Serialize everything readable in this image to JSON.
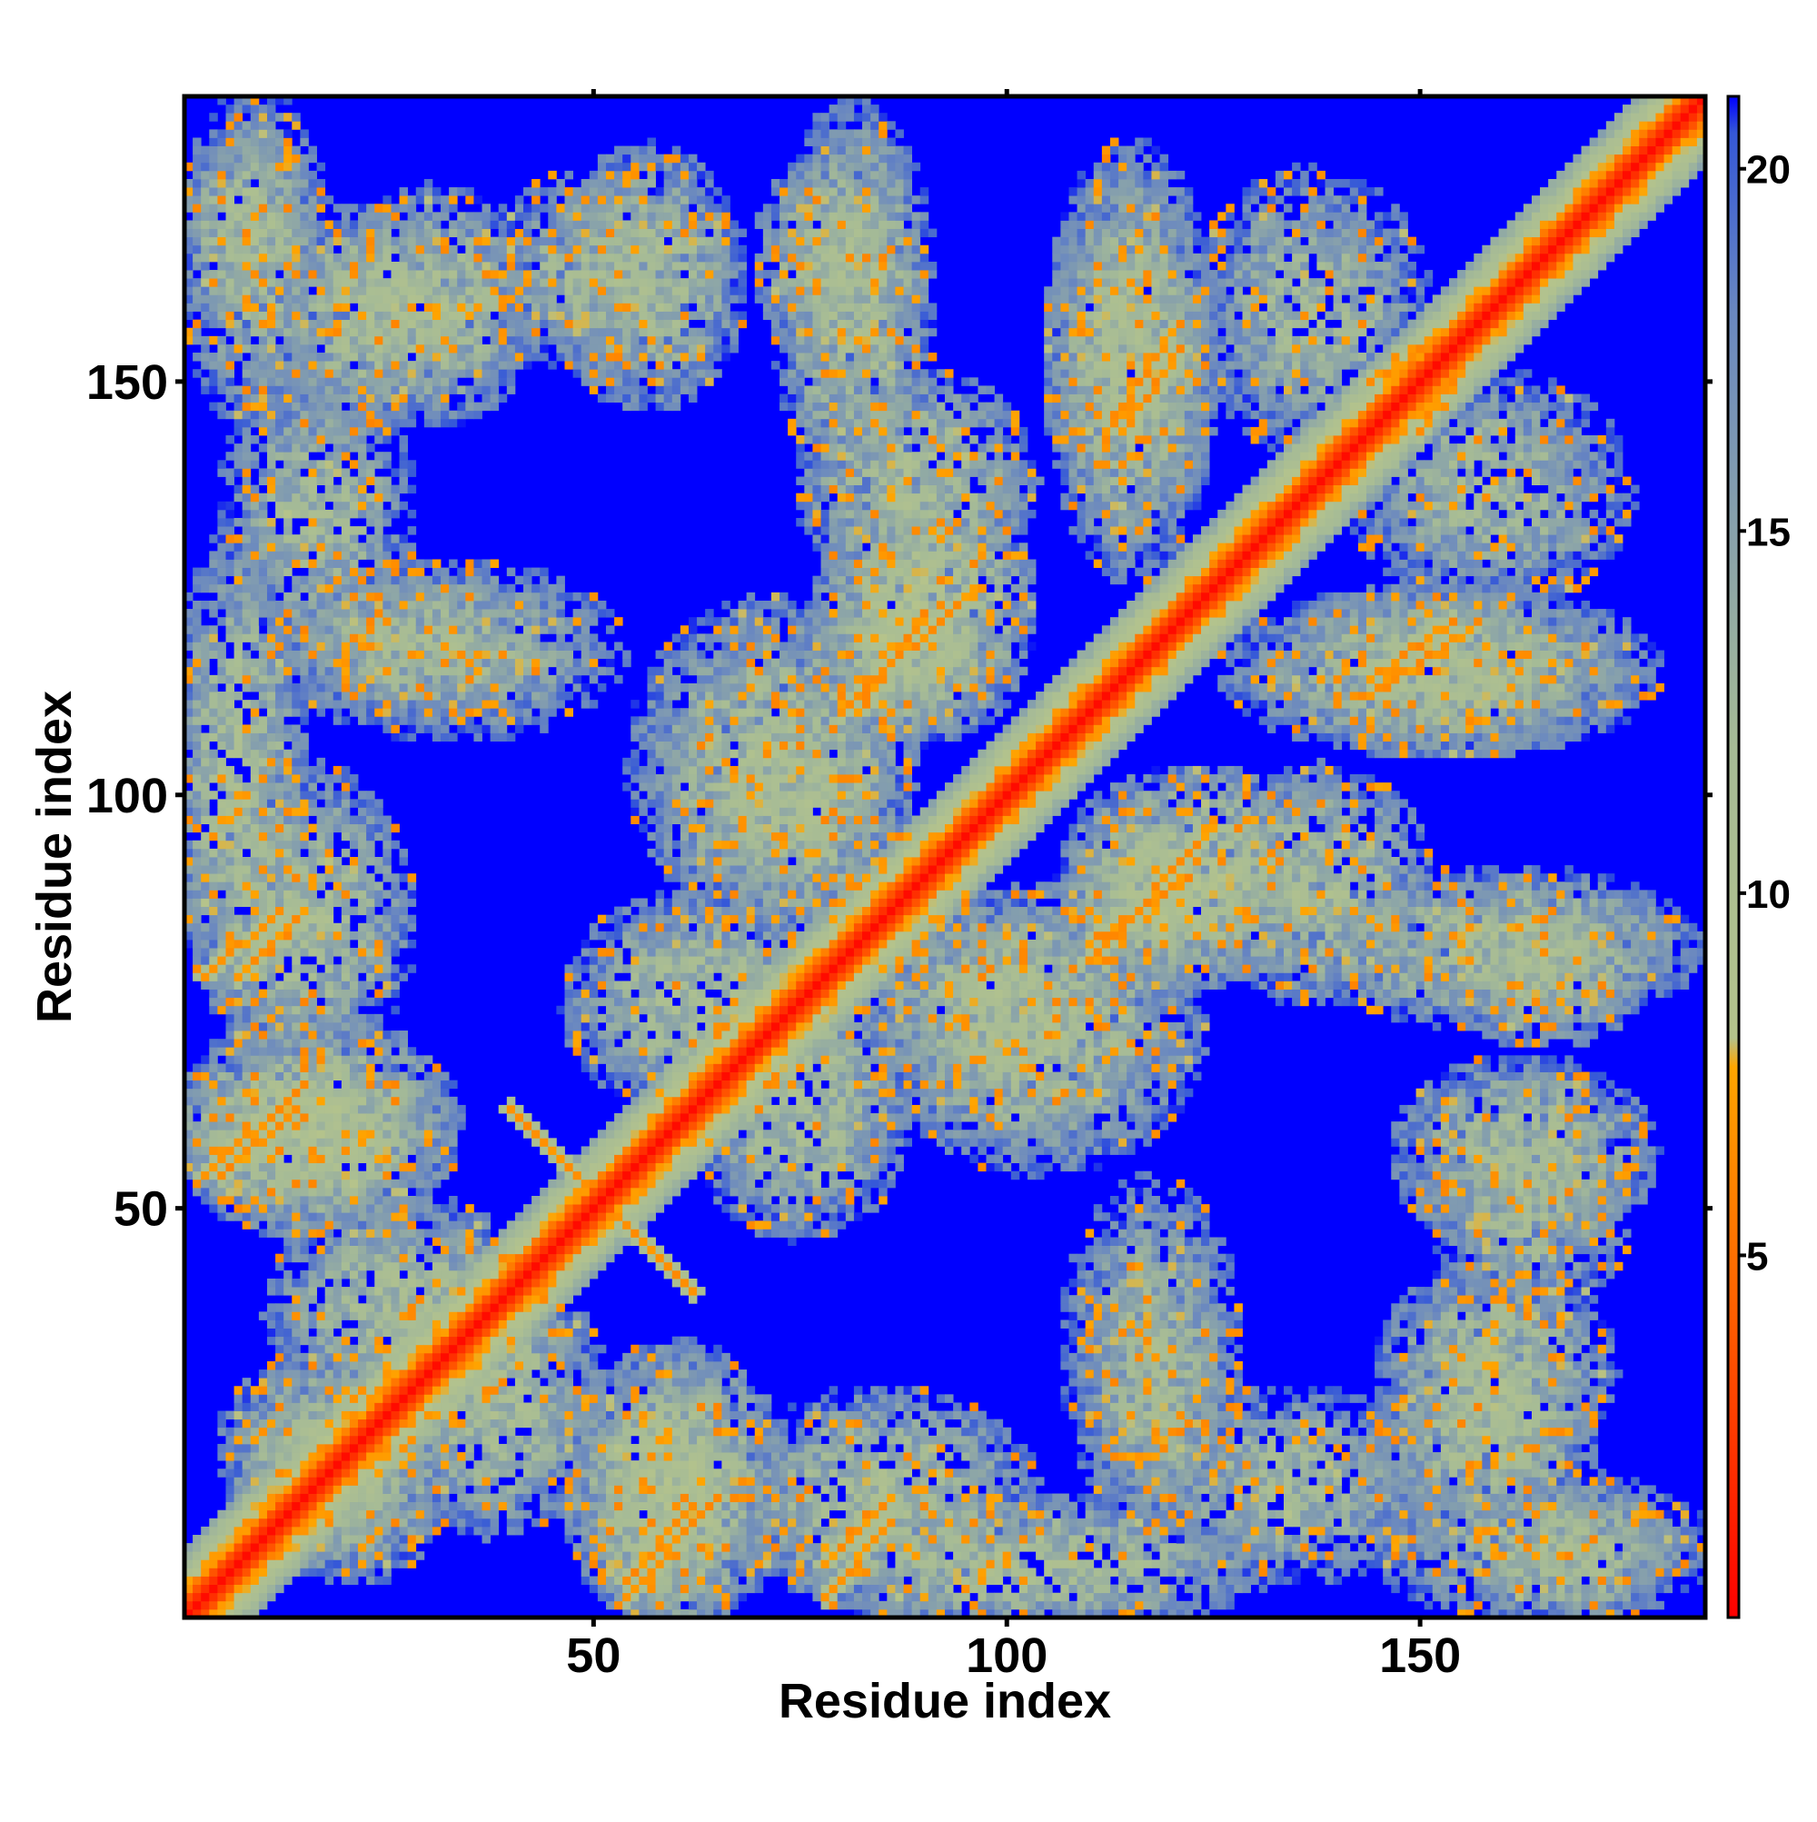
{
  "chart_data": {
    "type": "heatmap",
    "title": "",
    "xlabel": "Residue index",
    "ylabel": "Residue index",
    "n_residues": 184,
    "xlim": [
      1,
      184
    ],
    "ylim": [
      1,
      184
    ],
    "x_ticks": [
      50,
      100,
      150
    ],
    "x_tick_labels": [
      "50",
      "100",
      "150"
    ],
    "y_ticks": [
      50,
      100,
      150
    ],
    "y_tick_labels": [
      "50",
      "100",
      "150"
    ],
    "colorbar": {
      "label": "",
      "range": [
        0,
        21
      ],
      "ticks": [
        5,
        10,
        15,
        20
      ],
      "tick_labels": [
        "5",
        "10",
        "15",
        "20"
      ],
      "stops": [
        {
          "value": 0,
          "color": "#ff0000"
        },
        {
          "value": 4,
          "color": "#ff5a00"
        },
        {
          "value": 7.6,
          "color": "#ffa500"
        },
        {
          "value": 8.0,
          "color": "#b4c38c"
        },
        {
          "value": 12,
          "color": "#a6bb96"
        },
        {
          "value": 18,
          "color": "#6a88c0"
        },
        {
          "value": 20.5,
          "color": "#3558d8"
        },
        {
          "value": 21,
          "color": "#0000ff"
        }
      ]
    },
    "background_value": 21,
    "diagonal": {
      "min_distance": 0.5,
      "band_width_residues": 8
    },
    "contact_regions": [
      {
        "x": [
          3,
          13
        ],
        "y": [
          160,
          178
        ],
        "level": 12
      },
      {
        "x": [
          14,
          32
        ],
        "y": [
          148,
          168
        ],
        "level": 12
      },
      {
        "x": [
          40,
          60
        ],
        "y": [
          155,
          172
        ],
        "level": 13
      },
      {
        "x": [
          73,
          85
        ],
        "y": [
          155,
          175
        ],
        "level": 12
      },
      {
        "x": [
          108,
          122
        ],
        "y": [
          135,
          172
        ],
        "level": 12
      },
      {
        "x": [
          126,
          148
        ],
        "y": [
          145,
          172
        ],
        "level": 13
      },
      {
        "x": [
          78,
          100
        ],
        "y": [
          128,
          148
        ],
        "level": 12
      },
      {
        "x": [
          80,
          95
        ],
        "y": [
          110,
          125
        ],
        "level": 11
      },
      {
        "x": [
          2,
          12
        ],
        "y": [
          78,
          128
        ],
        "level": 12
      },
      {
        "x": [
          14,
          40
        ],
        "y": [
          112,
          125
        ],
        "level": 13
      },
      {
        "x": [
          58,
          85
        ],
        "y": [
          88,
          120
        ],
        "level": 12
      },
      {
        "x": [
          110,
          135
        ],
        "y": [
          80,
          100
        ],
        "level": 11
      },
      {
        "x": [
          130,
          175
        ],
        "y": [
          108,
          122
        ],
        "level": 12
      },
      {
        "x": [
          140,
          180
        ],
        "y": [
          75,
          88
        ],
        "level": 12
      },
      {
        "x": [
          86,
          112
        ],
        "y": [
          65,
          85
        ],
        "level": 12
      },
      {
        "x": [
          2,
          30
        ],
        "y": [
          50,
          70
        ],
        "level": 11
      },
      {
        "x": [
          50,
          75
        ],
        "y": [
          65,
          85
        ],
        "level": 12
      },
      {
        "x": [
          14,
          40
        ],
        "y": [
          28,
          48
        ],
        "level": 12
      },
      {
        "x": [
          8,
          30
        ],
        "y": [
          10,
          30
        ],
        "level": 12
      },
      {
        "x": [
          52,
          66
        ],
        "y": [
          3,
          28
        ],
        "level": 11
      },
      {
        "x": [
          70,
          100
        ],
        "y": [
          5,
          25
        ],
        "level": 12
      },
      {
        "x": [
          110,
          125
        ],
        "y": [
          15,
          50
        ],
        "level": 13
      },
      {
        "x": [
          148,
          170
        ],
        "y": [
          20,
          40
        ],
        "level": 12
      },
      {
        "x": [
          150,
          175
        ],
        "y": [
          48,
          65
        ],
        "level": 12
      },
      {
        "x": [
          148,
          182
        ],
        "y": [
          3,
          15
        ],
        "level": 13
      },
      {
        "x": [
          120,
          148
        ],
        "y": [
          8,
          25
        ],
        "level": 13
      }
    ],
    "close_contacts": [
      {
        "from": [
          40,
          62
        ],
        "to": [
          62,
          40
        ],
        "value": 6
      },
      {
        "from": [
          110,
          80
        ],
        "to": [
          125,
          96
        ],
        "value": 6
      },
      {
        "from": [
          144,
          112
        ],
        "to": [
          156,
          120
        ],
        "value": 6
      },
      {
        "from": [
          82,
          110
        ],
        "to": [
          90,
          122
        ],
        "value": 6
      },
      {
        "from": [
          3,
          54
        ],
        "to": [
          14,
          64
        ],
        "value": 6
      },
      {
        "from": [
          54,
          5
        ],
        "to": [
          62,
          14
        ],
        "value": 6
      },
      {
        "from": [
          78,
          7
        ],
        "to": [
          86,
          15
        ],
        "value": 6
      },
      {
        "from": [
          3,
          78
        ],
        "to": [
          12,
          86
        ],
        "value": 6
      },
      {
        "from": [
          114,
          144
        ],
        "to": [
          121,
          154
        ],
        "value": 6
      },
      {
        "from": [
          144,
          150
        ],
        "to": [
          154,
          156
        ],
        "value": 6
      }
    ]
  }
}
